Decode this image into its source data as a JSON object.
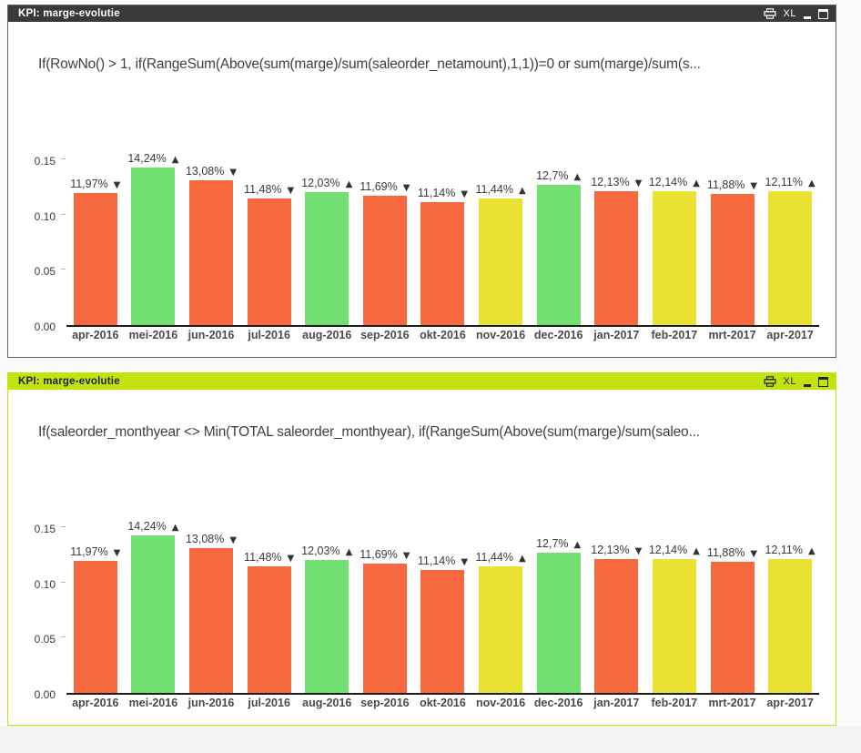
{
  "app": {
    "background": "#fbfbfb",
    "footer_background": "#f2f2f2"
  },
  "palette": {
    "red": "#f6683e",
    "green": "#72e072",
    "yellow": "#eae233",
    "axis_line": "#1c1c1c"
  },
  "panels": [
    {
      "title": "KPI: marge-evolutie",
      "titlebar_bg": "#3a3a3a",
      "titlebar_fg": "#ffffff",
      "border_color": "#5f5f5f",
      "window_buttons": {
        "export_excel": "XL"
      },
      "formula": "If(RowNo() > 1, if(RangeSum(Above(sum(marge)/sum(saleorder_netamount),1,1))=0 or sum(marge)/sum(s...",
      "chart_data": {
        "type": "bar",
        "title": "",
        "xlabel": "",
        "ylabel": "",
        "grid": false,
        "legend": false,
        "ylim": [
          0,
          0.18
        ],
        "y_ticks": [
          {
            "label": "0.00",
            "value": 0
          },
          {
            "label": "0.05",
            "value": 0.05
          },
          {
            "label": "0.10",
            "value": 0.1
          },
          {
            "label": "0.15",
            "value": 0.15
          }
        ],
        "categories": [
          "apr-2016",
          "mei-2016",
          "jun-2016",
          "jul-2016",
          "aug-2016",
          "sep-2016",
          "okt-2016",
          "nov-2016",
          "dec-2016",
          "jan-2017",
          "feb-2017",
          "mrt-2017",
          "apr-2017"
        ],
        "values": [
          0.1197,
          0.1424,
          0.1308,
          0.1148,
          0.1203,
          0.1169,
          0.1114,
          0.1144,
          0.127,
          0.1213,
          0.1214,
          0.1188,
          0.1211
        ],
        "bar_labels": [
          "11,97%",
          "14,24%",
          "13,08%",
          "11,48%",
          "12,03%",
          "11,69%",
          "11,14%",
          "11,44%",
          "12,7%",
          "12,13%",
          "12,14%",
          "11,88%",
          "12,11%"
        ],
        "trend_arrows": [
          "▼",
          "▲",
          "▼",
          "▼",
          "▲",
          "▼",
          "▼",
          "▲",
          "▲",
          "▼",
          "▲",
          "▼",
          "▲"
        ],
        "bar_colors": [
          "red",
          "green",
          "red",
          "red",
          "green",
          "red",
          "red",
          "yellow",
          "green",
          "red",
          "yellow",
          "red",
          "yellow"
        ]
      }
    },
    {
      "title": "KPI: marge-evolutie",
      "titlebar_bg": "#c4e30e",
      "titlebar_fg": "#222222",
      "border_color": "#c4e30e",
      "window_buttons": {
        "export_excel": "XL"
      },
      "formula": "If(saleorder_monthyear <> Min(TOTAL saleorder_monthyear), if(RangeSum(Above(sum(marge)/sum(saleo...",
      "chart_data": {
        "type": "bar",
        "title": "",
        "xlabel": "",
        "ylabel": "",
        "grid": false,
        "legend": false,
        "ylim": [
          0,
          0.18
        ],
        "y_ticks": [
          {
            "label": "0.00",
            "value": 0
          },
          {
            "label": "0.05",
            "value": 0.05
          },
          {
            "label": "0.10",
            "value": 0.1
          },
          {
            "label": "0.15",
            "value": 0.15
          }
        ],
        "categories": [
          "apr-2016",
          "mei-2016",
          "jun-2016",
          "jul-2016",
          "aug-2016",
          "sep-2016",
          "okt-2016",
          "nov-2016",
          "dec-2016",
          "jan-2017",
          "feb-2017",
          "mrt-2017",
          "apr-2017"
        ],
        "values": [
          0.1197,
          0.1424,
          0.1308,
          0.1148,
          0.1203,
          0.1169,
          0.1114,
          0.1144,
          0.127,
          0.1213,
          0.1214,
          0.1188,
          0.1211
        ],
        "bar_labels": [
          "11,97%",
          "14,24%",
          "13,08%",
          "11,48%",
          "12,03%",
          "11,69%",
          "11,14%",
          "11,44%",
          "12,7%",
          "12,13%",
          "12,14%",
          "11,88%",
          "12,11%"
        ],
        "trend_arrows": [
          "▼",
          "▲",
          "▼",
          "▼",
          "▲",
          "▼",
          "▼",
          "▲",
          "▲",
          "▼",
          "▲",
          "▼",
          "▲"
        ],
        "bar_colors": [
          "red",
          "green",
          "red",
          "red",
          "green",
          "red",
          "red",
          "yellow",
          "green",
          "red",
          "yellow",
          "red",
          "yellow"
        ]
      }
    }
  ]
}
